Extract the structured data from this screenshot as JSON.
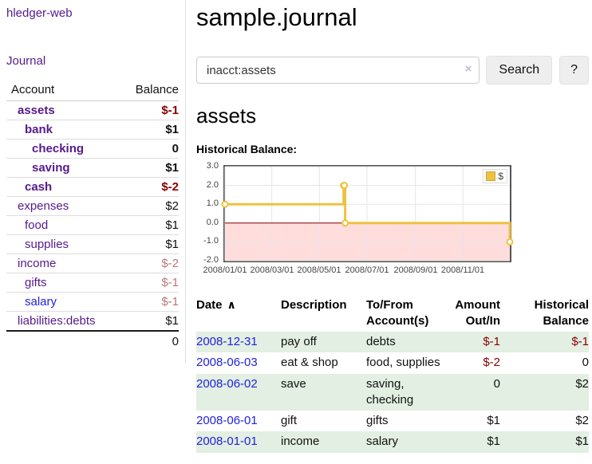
{
  "sidebar": {
    "brand": "hledger-web",
    "nav_journal_label": "Journal",
    "accounts_table": {
      "headers": [
        "Account",
        "Balance"
      ],
      "rows": [
        {
          "account": "assets",
          "balance": "$-1",
          "level": 1,
          "bold": true,
          "balance_style": "negative"
        },
        {
          "account": "bank",
          "balance": "$1",
          "level": 2,
          "bold": true,
          "balance_style": "normal"
        },
        {
          "account": "checking",
          "balance": "0",
          "level": 3,
          "bold": true,
          "balance_style": "normal"
        },
        {
          "account": "saving",
          "balance": "$1",
          "level": 3,
          "bold": true,
          "balance_style": "normal"
        },
        {
          "account": "cash",
          "balance": "$-2",
          "level": 2,
          "bold": true,
          "balance_style": "negative"
        },
        {
          "account": "expenses",
          "balance": "$2",
          "level": 1,
          "bold": false,
          "balance_style": "normal"
        },
        {
          "account": "food",
          "balance": "$1",
          "level": 2,
          "bold": false,
          "balance_style": "normal"
        },
        {
          "account": "supplies",
          "balance": "$1",
          "level": 2,
          "bold": false,
          "balance_style": "normal"
        },
        {
          "account": "income",
          "balance": "$-2",
          "level": 1,
          "bold": false,
          "balance_style": "muted-negative"
        },
        {
          "account": "gifts",
          "balance": "$-1",
          "level": 2,
          "bold": false,
          "balance_style": "muted-negative"
        },
        {
          "account": "salary",
          "balance": "$-1",
          "level": 2,
          "bold": false,
          "balance_style": "muted-negative",
          "link_color": "blue"
        },
        {
          "account": "liabilities:debts",
          "balance": "$1",
          "level": 1,
          "bold": false,
          "balance_style": "normal"
        }
      ],
      "total": "0"
    }
  },
  "header": {
    "title": "sample.journal"
  },
  "search": {
    "value": "inacct:assets",
    "clear_icon": "×",
    "button_label": "Search",
    "help_label": "?"
  },
  "account_page": {
    "heading": "assets",
    "chart_label": "Historical Balance:"
  },
  "chart_data": {
    "type": "line",
    "style": "step",
    "title": "Historical Balance",
    "series": [
      {
        "name": "$",
        "color": "#edc240",
        "points": [
          [
            "2008-01-01",
            1
          ],
          [
            "2008-06-01",
            2
          ],
          [
            "2008-06-02",
            2
          ],
          [
            "2008-06-03",
            0
          ],
          [
            "2008-12-31",
            -1
          ]
        ]
      }
    ],
    "ylim": [
      -2,
      3
    ],
    "ytick_labels": [
      "3.0",
      "2.0",
      "1.0",
      "0.0",
      "-1.0",
      "-2.0"
    ],
    "ytick_values": [
      3,
      2,
      1,
      0,
      -1,
      -2
    ],
    "xtick_labels": [
      "2008/01/01",
      "2008/03/01",
      "2008/05/01",
      "2008/07/01",
      "2008/09/01",
      "2008/11/01"
    ],
    "xlim": [
      "2008-01-01",
      "2008-12-31"
    ],
    "grid": true,
    "legend_position": "top-right",
    "negative_region_fill": "#ffdddd",
    "zero_line_color": "#880000",
    "grid_color": "#e6e6e6"
  },
  "register_table": {
    "columns": [
      {
        "lines": [
          "Date"
        ],
        "align": "left",
        "sortable": true,
        "sort_indicator": "∧"
      },
      {
        "lines": [
          "Description"
        ],
        "align": "left"
      },
      {
        "lines": [
          "To/From",
          "Account(s)"
        ],
        "align": "left"
      },
      {
        "lines": [
          "Amount",
          "Out/In"
        ],
        "align": "right"
      },
      {
        "lines": [
          "Historical",
          "Balance"
        ],
        "align": "right"
      }
    ],
    "rows": [
      {
        "date": "2008-12-31",
        "description": "pay off",
        "account_lines": [
          "debts"
        ],
        "amount": "$-1",
        "amount_negative": true,
        "balance": "$-1",
        "balance_negative": true
      },
      {
        "date": "2008-06-03",
        "description": "eat & shop",
        "account_lines": [
          "food, supplies"
        ],
        "amount": "$-2",
        "amount_negative": true,
        "balance": "0",
        "balance_negative": false
      },
      {
        "date": "2008-06-02",
        "description": "save",
        "account_lines": [
          "saving,",
          "checking"
        ],
        "amount": "0",
        "amount_negative": false,
        "balance": "$2",
        "balance_negative": false
      },
      {
        "date": "2008-06-01",
        "description": "gift",
        "account_lines": [
          "gifts"
        ],
        "amount": "$1",
        "amount_negative": false,
        "balance": "$2",
        "balance_negative": false
      },
      {
        "date": "2008-01-01",
        "description": "income",
        "account_lines": [
          "salary"
        ],
        "amount": "$1",
        "amount_negative": false,
        "balance": "$1",
        "balance_negative": false
      }
    ]
  },
  "colors": {
    "link_purple": "#551a8b",
    "link_blue": "#2222dd",
    "negative_red": "#880000",
    "muted_negative_red": "#bb7777",
    "row_stripe_green": "#e2efe2",
    "chart_line_gold": "#edc240",
    "chart_negative_fill": "#ffdddd",
    "chart_zero_line": "#880000",
    "button_bg": "#eeeeee",
    "clear_icon_lavender": "#c9bcdc"
  }
}
